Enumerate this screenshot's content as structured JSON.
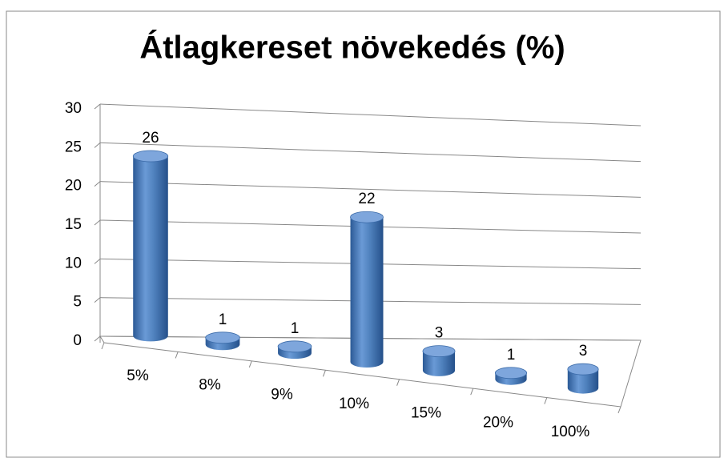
{
  "chart_data": {
    "type": "bar3d",
    "title": "Átlagkereset növekedés (%)",
    "categories": [
      "5%",
      "8%",
      "9%",
      "10%",
      "15%",
      "20%",
      "100%"
    ],
    "values": [
      26,
      1,
      1,
      22,
      3,
      1,
      3
    ],
    "color": "#4f81bd",
    "ylim": [
      0,
      30
    ],
    "yticks": [
      0,
      5,
      10,
      15,
      20,
      25,
      30
    ],
    "grid": true
  }
}
